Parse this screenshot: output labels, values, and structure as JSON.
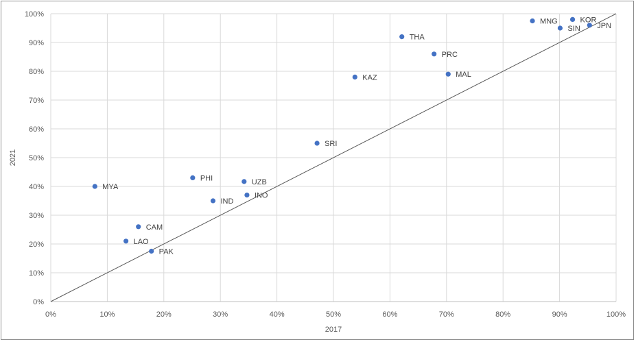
{
  "chart_data": {
    "type": "scatter",
    "title": "",
    "xlabel": "2017",
    "ylabel": "2021",
    "xlim": [
      0,
      1
    ],
    "ylim": [
      0,
      1
    ],
    "x_ticks": [
      "0%",
      "10%",
      "20%",
      "30%",
      "40%",
      "50%",
      "60%",
      "70%",
      "80%",
      "90%",
      "100%"
    ],
    "y_ticks": [
      "0%",
      "10%",
      "20%",
      "30%",
      "40%",
      "50%",
      "60%",
      "70%",
      "80%",
      "90%",
      "100%"
    ],
    "grid": true,
    "legend": "none",
    "reference_line": "diagonal y = x",
    "colors": {
      "marker": "#4472c4",
      "gridline": "#d9d9d9",
      "axis": "#bfbfbf",
      "diagonal": "#595959"
    },
    "points": [
      {
        "label": "MYA",
        "x": 0.078,
        "y": 0.4
      },
      {
        "label": "LAO",
        "x": 0.133,
        "y": 0.21
      },
      {
        "label": "CAM",
        "x": 0.155,
        "y": 0.26
      },
      {
        "label": "PAK",
        "x": 0.178,
        "y": 0.175
      },
      {
        "label": "PHI",
        "x": 0.251,
        "y": 0.43
      },
      {
        "label": "IND",
        "x": 0.287,
        "y": 0.35
      },
      {
        "label": "UZB",
        "x": 0.342,
        "y": 0.417
      },
      {
        "label": "INO",
        "x": 0.347,
        "y": 0.37
      },
      {
        "label": "SRI",
        "x": 0.471,
        "y": 0.55
      },
      {
        "label": "KAZ",
        "x": 0.538,
        "y": 0.78
      },
      {
        "label": "THA",
        "x": 0.621,
        "y": 0.92
      },
      {
        "label": "PRC",
        "x": 0.678,
        "y": 0.86
      },
      {
        "label": "MAL",
        "x": 0.703,
        "y": 0.79
      },
      {
        "label": "MNG",
        "x": 0.852,
        "y": 0.975
      },
      {
        "label": "SIN",
        "x": 0.901,
        "y": 0.95
      },
      {
        "label": "KOR",
        "x": 0.923,
        "y": 0.98
      },
      {
        "label": "JPN",
        "x": 0.953,
        "y": 0.96
      }
    ]
  }
}
